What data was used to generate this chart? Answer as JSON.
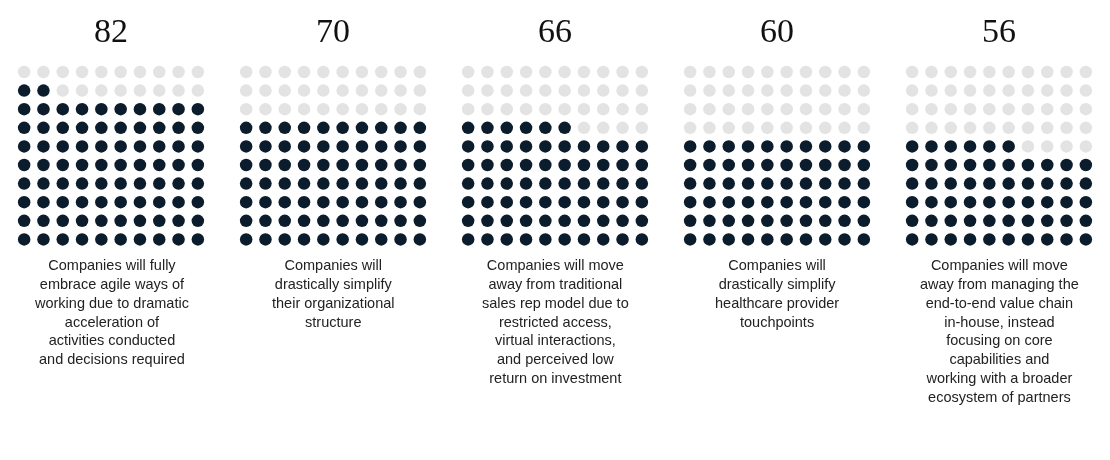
{
  "chart_data": {
    "type": "other",
    "categories": [
      "Companies will fully embrace agile ways of working due to dramatic acceleration of activities conducted and decisions required",
      "Companies will drastically simplify their organizational structure",
      "Companies will move away from traditional sales rep model due to restricted access, virtual interactions, and perceived low return on investment",
      "Companies will drastically simplify healthcare provider touchpoints",
      "Companies will move away from managing the end-to-end value chain in-house, instead focusing on core capabilities and working with a broader ecosystem of partners"
    ],
    "values": [
      82,
      70,
      66,
      60,
      56
    ],
    "colors": [
      "#0b1c2c",
      "#0b1c2c",
      "#0b1c2c",
      "#0b1c2c",
      "#0b1c2c"
    ],
    "data_labels": true
  }
}
